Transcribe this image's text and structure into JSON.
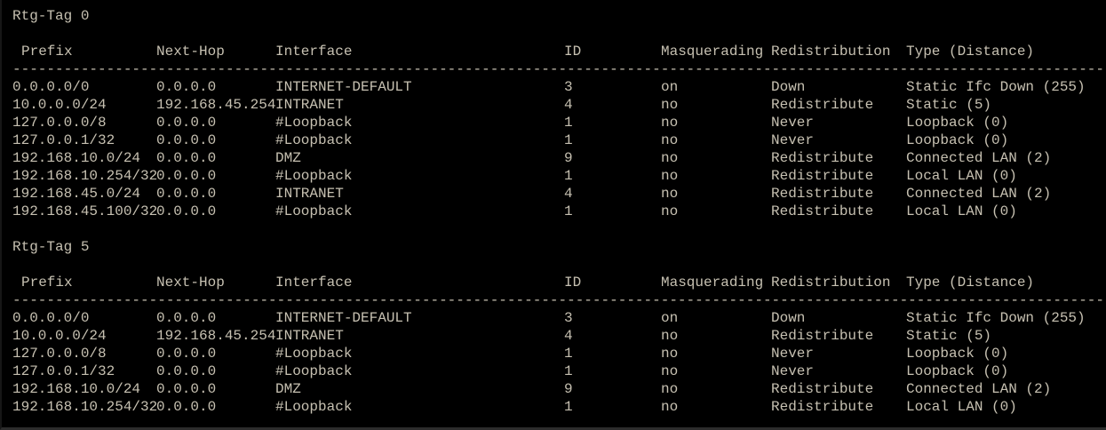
{
  "terminal": {
    "background_color": "#000000",
    "text_color": "#c6c0b1",
    "columns": [
      "Prefix",
      "Next-Hop",
      "Interface",
      "ID",
      "Masquerading",
      "Redistribution",
      "Type (Distance)"
    ],
    "separator": "----------------------------------------------------------------------------------------------------------------------------------",
    "sections": [
      {
        "title": "Rtg-Tag 0",
        "rows": [
          [
            "0.0.0.0/0",
            "0.0.0.0",
            "INTERNET-DEFAULT",
            "3",
            "on",
            "Down",
            "Static Ifc Down (255)"
          ],
          [
            "10.0.0.0/24",
            "192.168.45.254",
            "INTRANET",
            "4",
            "no",
            "Redistribute",
            "Static (5)"
          ],
          [
            "127.0.0.0/8",
            "0.0.0.0",
            "#Loopback",
            "1",
            "no",
            "Never",
            "Loopback (0)"
          ],
          [
            "127.0.0.1/32",
            "0.0.0.0",
            "#Loopback",
            "1",
            "no",
            "Never",
            "Loopback (0)"
          ],
          [
            "192.168.10.0/24",
            "0.0.0.0",
            "DMZ",
            "9",
            "no",
            "Redistribute",
            "Connected LAN (2)"
          ],
          [
            "192.168.10.254/32",
            "0.0.0.0",
            "#Loopback",
            "1",
            "no",
            "Redistribute",
            "Local LAN (0)"
          ],
          [
            "192.168.45.0/24",
            "0.0.0.0",
            "INTRANET",
            "4",
            "no",
            "Redistribute",
            "Connected LAN (2)"
          ],
          [
            "192.168.45.100/32",
            "0.0.0.0",
            "#Loopback",
            "1",
            "no",
            "Redistribute",
            "Local LAN (0)"
          ]
        ]
      },
      {
        "title": "Rtg-Tag 5",
        "rows": [
          [
            "0.0.0.0/0",
            "0.0.0.0",
            "INTERNET-DEFAULT",
            "3",
            "on",
            "Down",
            "Static Ifc Down (255)"
          ],
          [
            "10.0.0.0/24",
            "192.168.45.254",
            "INTRANET",
            "4",
            "no",
            "Redistribute",
            "Static (5)"
          ],
          [
            "127.0.0.0/8",
            "0.0.0.0",
            "#Loopback",
            "1",
            "no",
            "Never",
            "Loopback (0)"
          ],
          [
            "127.0.0.1/32",
            "0.0.0.0",
            "#Loopback",
            "1",
            "no",
            "Never",
            "Loopback (0)"
          ],
          [
            "192.168.10.0/24",
            "0.0.0.0",
            "DMZ",
            "9",
            "no",
            "Redistribute",
            "Connected LAN (2)"
          ],
          [
            "192.168.10.254/32",
            "0.0.0.0",
            "#Loopback",
            "1",
            "no",
            "Redistribute",
            "Local LAN (0)"
          ]
        ]
      }
    ]
  }
}
